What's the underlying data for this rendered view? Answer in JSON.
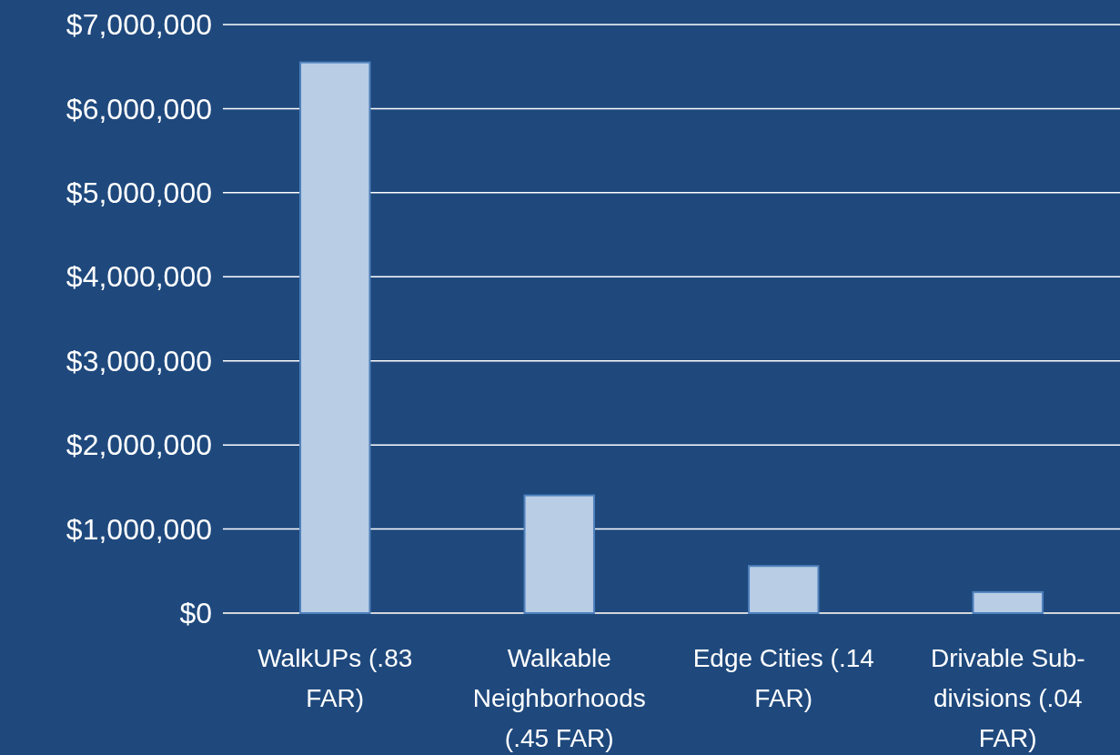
{
  "chart_data": {
    "type": "bar",
    "categories": [
      "WalkUPs (.83 FAR)",
      "Walkable Neighborhoods (.45 FAR)",
      "Edge Cities (.14 FAR)",
      "Drivable Sub-divisions (.04 FAR)"
    ],
    "values": [
      6550000,
      1400000,
      560000,
      250000
    ],
    "color": "#b9cde5",
    "ylim": [
      0,
      7000000
    ],
    "yticks": [
      {
        "value": 0,
        "label": "$0"
      },
      {
        "value": 1000000,
        "label": "$1,000,000"
      },
      {
        "value": 2000000,
        "label": "$2,000,000"
      },
      {
        "value": 3000000,
        "label": "$3,000,000"
      },
      {
        "value": 4000000,
        "label": "$4,000,000"
      },
      {
        "value": 5000000,
        "label": "$5,000,000"
      },
      {
        "value": 6000000,
        "label": "$6,000,000"
      },
      {
        "value": 7000000,
        "label": "$7,000,000"
      }
    ],
    "grid": "y"
  }
}
